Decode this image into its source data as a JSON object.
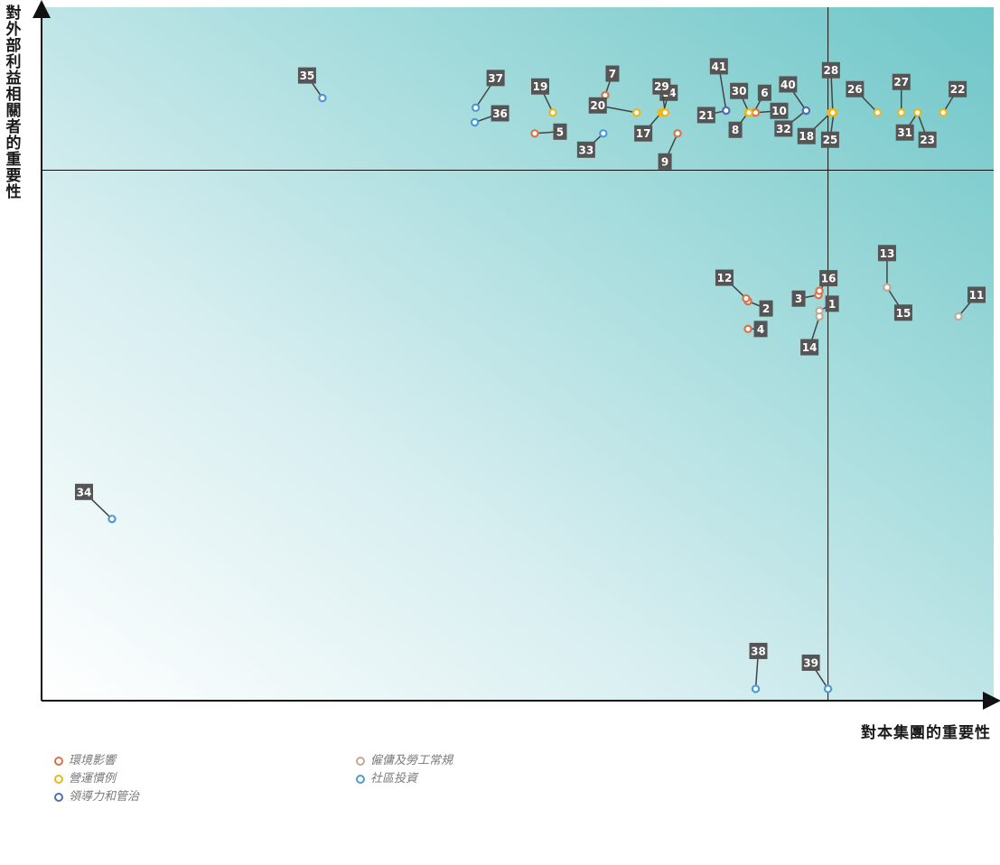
{
  "chart_data": {
    "type": "scatter",
    "xlabel": "對本集團的重要性",
    "ylabel": "對外部利益相關者的重要性",
    "xlim": [
      0,
      100
    ],
    "ylim": [
      0,
      100
    ],
    "divider": {
      "x": 82.6,
      "y": 76.5
    },
    "colors": {
      "環境影響": "#d9734a",
      "營運慣例": "#e8b820",
      "領導力和管治": "#4f6fb2",
      "僱傭及勞工常規": "#c2a898",
      "社區投資": "#4d9ad6"
    },
    "legend": [
      {
        "name": "環境影響",
        "color": "#d9734a"
      },
      {
        "name": "營運慣例",
        "color": "#e8b820"
      },
      {
        "name": "領導力和管治",
        "color": "#4f6fb2"
      },
      {
        "name": "僱傭及勞工常規",
        "color": "#c2a898"
      },
      {
        "name": "社區投資",
        "color": "#4d9ad6"
      }
    ],
    "points": [
      {
        "id": "1",
        "x": 81.7,
        "y": 56.2,
        "category": "僱傭及勞工常規"
      },
      {
        "id": "2",
        "x": 74.2,
        "y": 57.6,
        "category": "環境影響"
      },
      {
        "id": "3",
        "x": 81.6,
        "y": 58.5,
        "category": "環境影響"
      },
      {
        "id": "4",
        "x": 74.2,
        "y": 53.6,
        "category": "環境影響"
      },
      {
        "id": "5",
        "x": 51.8,
        "y": 81.8,
        "category": "環境影響"
      },
      {
        "id": "6",
        "x": 74.8,
        "y": 84.8,
        "category": "營運慣例"
      },
      {
        "id": "7",
        "x": 59.2,
        "y": 87.3,
        "category": "環境影響"
      },
      {
        "id": "8",
        "x": 74.2,
        "y": 84.8,
        "category": "營運慣例"
      },
      {
        "id": "9",
        "x": 66.8,
        "y": 81.8,
        "category": "環境影響"
      },
      {
        "id": "10",
        "x": 75.0,
        "y": 84.8,
        "category": "環境影響"
      },
      {
        "id": "11",
        "x": 96.3,
        "y": 55.4,
        "category": "僱傭及勞工常規"
      },
      {
        "id": "12",
        "x": 74.0,
        "y": 58.0,
        "category": "環境影響"
      },
      {
        "id": "13",
        "x": 88.8,
        "y": 59.6,
        "category": "僱傭及勞工常規"
      },
      {
        "id": "14",
        "x": 81.7,
        "y": 55.4,
        "category": "僱傭及勞工常規"
      },
      {
        "id": "15",
        "x": 88.8,
        "y": 59.6,
        "category": "僱傭及勞工常規"
      },
      {
        "id": "16",
        "x": 81.7,
        "y": 59.1,
        "category": "環境影響"
      },
      {
        "id": "17",
        "x": 65.1,
        "y": 84.8,
        "category": "營運慣例"
      },
      {
        "id": "18",
        "x": 82.9,
        "y": 84.8,
        "category": "營運慣例"
      },
      {
        "id": "19",
        "x": 53.7,
        "y": 84.8,
        "category": "營運慣例"
      },
      {
        "id": "20",
        "x": 62.5,
        "y": 84.8,
        "category": "營運慣例"
      },
      {
        "id": "21",
        "x": 71.9,
        "y": 85.1,
        "category": "領導力和管治"
      },
      {
        "id": "22",
        "x": 94.7,
        "y": 84.8,
        "category": "營運慣例"
      },
      {
        "id": "23",
        "x": 92.0,
        "y": 84.8,
        "category": "營運慣例"
      },
      {
        "id": "24",
        "x": 65.3,
        "y": 84.8,
        "category": "營運慣例"
      },
      {
        "id": "25",
        "x": 83.2,
        "y": 84.8,
        "category": "營運慣例"
      },
      {
        "id": "26",
        "x": 87.8,
        "y": 84.8,
        "category": "營運慣例"
      },
      {
        "id": "27",
        "x": 90.3,
        "y": 84.8,
        "category": "營運慣例"
      },
      {
        "id": "28",
        "x": 83.1,
        "y": 84.8,
        "category": "營運慣例"
      },
      {
        "id": "29",
        "x": 65.5,
        "y": 84.8,
        "category": "營運慣例"
      },
      {
        "id": "30",
        "x": 74.3,
        "y": 84.8,
        "category": "營運慣例"
      },
      {
        "id": "31",
        "x": 92.0,
        "y": 84.8,
        "category": "營運慣例"
      },
      {
        "id": "32",
        "x": 80.3,
        "y": 85.1,
        "category": "領導力和管治"
      },
      {
        "id": "33",
        "x": 59.0,
        "y": 81.8,
        "category": "社區投資"
      },
      {
        "id": "34",
        "x": 7.4,
        "y": 26.2,
        "category": "社區投資"
      },
      {
        "id": "35",
        "x": 29.5,
        "y": 86.9,
        "category": "社區投資"
      },
      {
        "id": "36",
        "x": 45.5,
        "y": 83.4,
        "category": "社區投資"
      },
      {
        "id": "37",
        "x": 45.6,
        "y": 85.5,
        "category": "社區投資"
      },
      {
        "id": "38",
        "x": 75.0,
        "y": 1.7,
        "category": "社區投資"
      },
      {
        "id": "39",
        "x": 82.6,
        "y": 1.7,
        "category": "社區投資"
      },
      {
        "id": "40",
        "x": 80.3,
        "y": 85.1,
        "category": "領導力和管治"
      },
      {
        "id": "41",
        "x": 71.9,
        "y": 85.1,
        "category": "領導力和管治"
      }
    ]
  }
}
